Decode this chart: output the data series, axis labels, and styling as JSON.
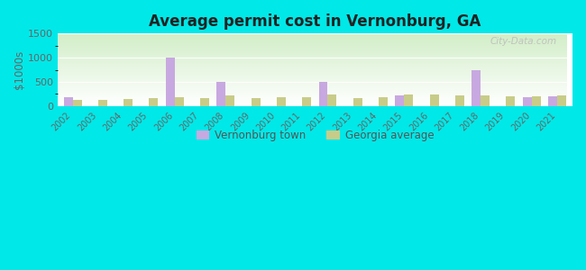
{
  "title": "Average permit cost in Vernonburg, GA",
  "ylabel": "$1000s",
  "years": [
    2002,
    2003,
    2004,
    2005,
    2006,
    2007,
    2008,
    2009,
    2010,
    2011,
    2012,
    2013,
    2014,
    2015,
    2016,
    2017,
    2018,
    2019,
    2020,
    2021
  ],
  "vernonburg": [
    175,
    0,
    0,
    0,
    1000,
    0,
    500,
    0,
    0,
    0,
    500,
    0,
    0,
    220,
    0,
    0,
    750,
    0,
    175,
    200
  ],
  "georgia": [
    130,
    130,
    150,
    155,
    175,
    170,
    220,
    160,
    175,
    175,
    230,
    165,
    175,
    235,
    230,
    220,
    220,
    205,
    205,
    215
  ],
  "vernonburg_color": "#c8a8e0",
  "georgia_color": "#c8cc88",
  "bg_outer": "#00e8e8",
  "ylim": [
    0,
    1500
  ],
  "yticks": [
    0,
    500,
    1000,
    1500
  ],
  "bar_width": 0.35,
  "legend_vernonburg": "Vernonburg town",
  "legend_georgia": "Georgia average",
  "watermark": "City-Data.com"
}
